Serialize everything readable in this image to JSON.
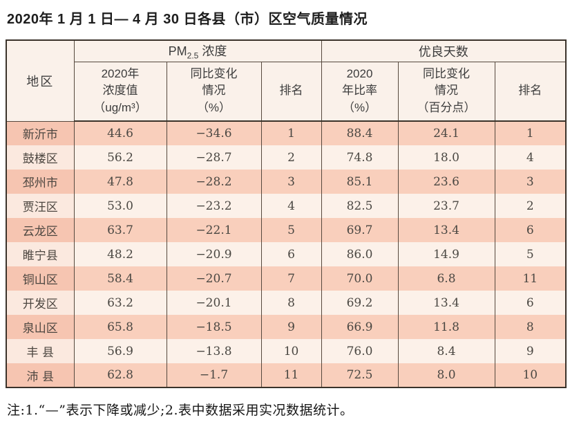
{
  "title": "2020年 1 月 1 日— 4 月 30 日各县（市）区空气质量情况",
  "table": {
    "region_header": "地区",
    "pm_group": {
      "base": "PM",
      "sub": "2.5",
      "rest": " 浓度"
    },
    "good_group": "优良天数",
    "subheaders": [
      "2020年\n浓度值\n（ug/m³）",
      "同比变化\n情况\n（%）",
      "排名",
      "2020\n年比率\n（%）",
      "同比变化\n情况\n（百分点）",
      "排名"
    ],
    "rows": [
      {
        "region": "新沂市",
        "pm_value": "44.6",
        "pm_change": "−34.6",
        "pm_rank": "1",
        "good_ratio": "88.4",
        "good_change": "24.1",
        "good_rank": "1"
      },
      {
        "region": "鼓楼区",
        "pm_value": "56.2",
        "pm_change": "−28.7",
        "pm_rank": "2",
        "good_ratio": "74.8",
        "good_change": "18.0",
        "good_rank": "4"
      },
      {
        "region": "邳州市",
        "pm_value": "47.8",
        "pm_change": "−28.2",
        "pm_rank": "3",
        "good_ratio": "85.1",
        "good_change": "23.6",
        "good_rank": "3"
      },
      {
        "region": "贾汪区",
        "pm_value": "53.0",
        "pm_change": "−23.2",
        "pm_rank": "4",
        "good_ratio": "82.5",
        "good_change": "23.7",
        "good_rank": "2"
      },
      {
        "region": "云龙区",
        "pm_value": "63.7",
        "pm_change": "−22.1",
        "pm_rank": "5",
        "good_ratio": "69.7",
        "good_change": "13.4",
        "good_rank": "6"
      },
      {
        "region": "睢宁县",
        "pm_value": "48.2",
        "pm_change": "−20.9",
        "pm_rank": "6",
        "good_ratio": "86.0",
        "good_change": "14.9",
        "good_rank": "5"
      },
      {
        "region": "铜山区",
        "pm_value": "58.4",
        "pm_change": "−20.7",
        "pm_rank": "7",
        "good_ratio": "70.0",
        "good_change": "6.8",
        "good_rank": "11"
      },
      {
        "region": "开发区",
        "pm_value": "63.2",
        "pm_change": "−20.1",
        "pm_rank": "8",
        "good_ratio": "69.2",
        "good_change": "13.4",
        "good_rank": "6"
      },
      {
        "region": "泉山区",
        "pm_value": "65.8",
        "pm_change": "−18.5",
        "pm_rank": "9",
        "good_ratio": "66.9",
        "good_change": "11.8",
        "good_rank": "8"
      },
      {
        "region": "丰 县",
        "pm_value": "56.9",
        "pm_change": "−13.8",
        "pm_rank": "10",
        "good_ratio": "76.0",
        "good_change": "8.4",
        "good_rank": "9"
      },
      {
        "region": "沛 县",
        "pm_value": "62.8",
        "pm_change": "−1.7",
        "pm_rank": "11",
        "good_ratio": "72.5",
        "good_change": "8.0",
        "good_rank": "10"
      }
    ],
    "colors": {
      "row_odd": "#f9cfbc",
      "row_even": "#fcf1e9",
      "header_bg": "#faf1ea",
      "grid": "#55483d",
      "outer_border": "#3a322a"
    }
  },
  "footnote": "注:1.“—”表示下降或减少;2.表中数据采用实况数据统计。"
}
